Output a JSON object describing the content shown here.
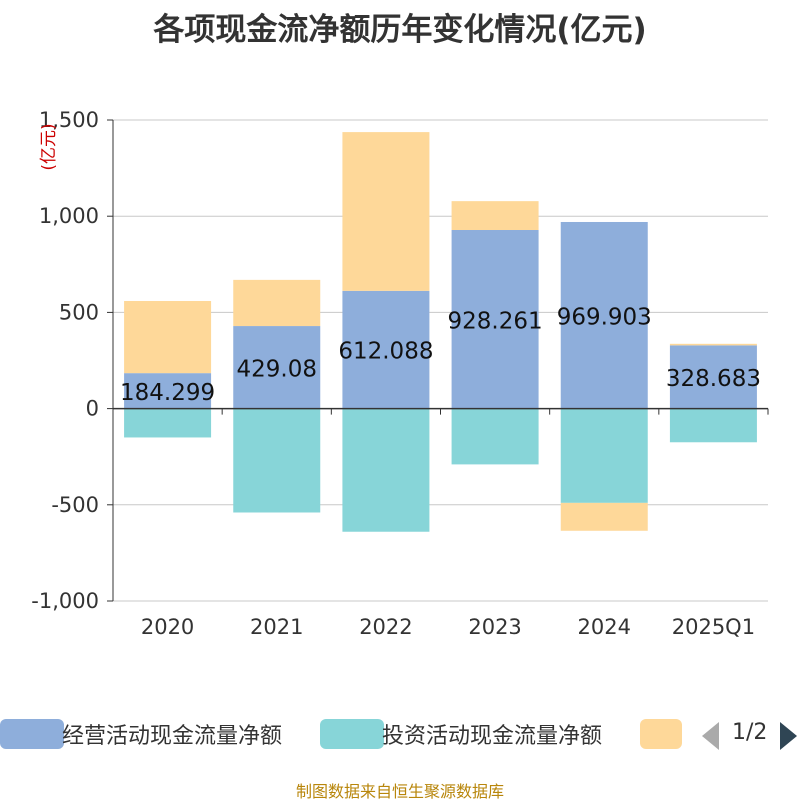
{
  "title": "各项现金流净额历年变化情况(亿元)",
  "source": "制图数据来自恒生聚源数据库",
  "legend_page": "1/2",
  "colors": {
    "operating": "#8eaedb",
    "investing": "#87d5d8",
    "financing": "#fed899",
    "axis": "#333333",
    "grid": "#c8c8c8",
    "unit": "#cc0000"
  },
  "chart_data": {
    "type": "bar",
    "stacked": true,
    "title": "各项现金流净额历年变化情况(亿元)",
    "ylabel": "(亿元)",
    "ylim": [
      -1000,
      1500
    ],
    "yticks": [
      -1000,
      -500,
      0,
      500,
      1000,
      1500
    ],
    "ytick_labels": [
      "-1,000",
      "-500",
      "0",
      "500",
      "1,000",
      "1,500"
    ],
    "categories": [
      "2020",
      "2021",
      "2022",
      "2023",
      "2024",
      "2025Q1"
    ],
    "series": [
      {
        "name": "经营活动现金流量净额",
        "color_key": "operating",
        "values": [
          184.299,
          429.08,
          612.088,
          928.261,
          969.903,
          328.683
        ],
        "labels": [
          "184.299",
          "429.08",
          "612.088",
          "928.261",
          "969.903",
          "328.683"
        ]
      },
      {
        "name": "投资活动现金流量净额",
        "color_key": "investing",
        "values": [
          -150,
          -540,
          -640,
          -290,
          -490,
          -175
        ]
      },
      {
        "name": "",
        "color_key": "financing",
        "values": [
          375,
          240,
          825,
          150,
          -145,
          8
        ]
      }
    ],
    "legend_position": "bottom"
  }
}
